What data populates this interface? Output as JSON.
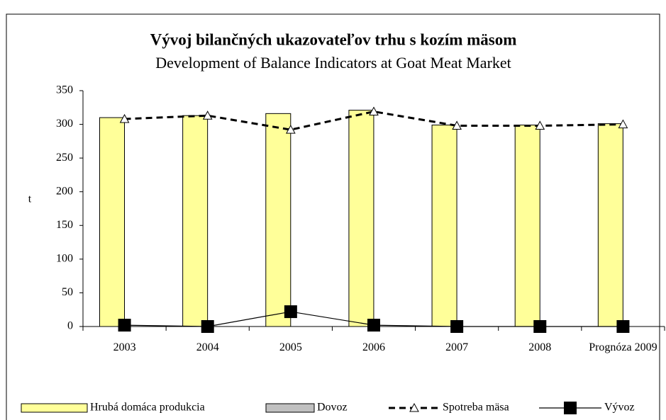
{
  "chart_data": {
    "type": "bar-line",
    "title": "Vývoj bilančných ukazovateľov  trhu s kozím mäsom",
    "subtitle": "Development of Balance Indicators at Goat Meat Market",
    "ylabel": "t",
    "categories": [
      "2003",
      "2004",
      "2005",
      "2006",
      "2007",
      "2008",
      "Prognóza 2009"
    ],
    "series": [
      {
        "name": "Hrubá domáca produkcia",
        "kind": "bar",
        "color": "#ffff99",
        "values": [
          310,
          313,
          316,
          321,
          299,
          299,
          301
        ]
      },
      {
        "name": "Dovoz",
        "kind": "bar",
        "color": "#c0c0c0",
        "values": [
          0,
          0,
          0,
          0,
          0,
          0,
          0
        ]
      },
      {
        "name": "Spotreba mäsa",
        "kind": "line",
        "style": "dashed",
        "marker": "triangle",
        "color": "#000000",
        "values": [
          308,
          313,
          292,
          319,
          298,
          298,
          300
        ]
      },
      {
        "name": "Vývoz",
        "kind": "line",
        "style": "solid",
        "marker": "square",
        "color": "#000000",
        "values": [
          2,
          0,
          22,
          2,
          0,
          0,
          0
        ]
      }
    ],
    "ylim": [
      0,
      350
    ],
    "yticks": [
      0,
      50,
      100,
      150,
      200,
      250,
      300,
      350
    ],
    "grid": false,
    "legend": "bottom"
  }
}
